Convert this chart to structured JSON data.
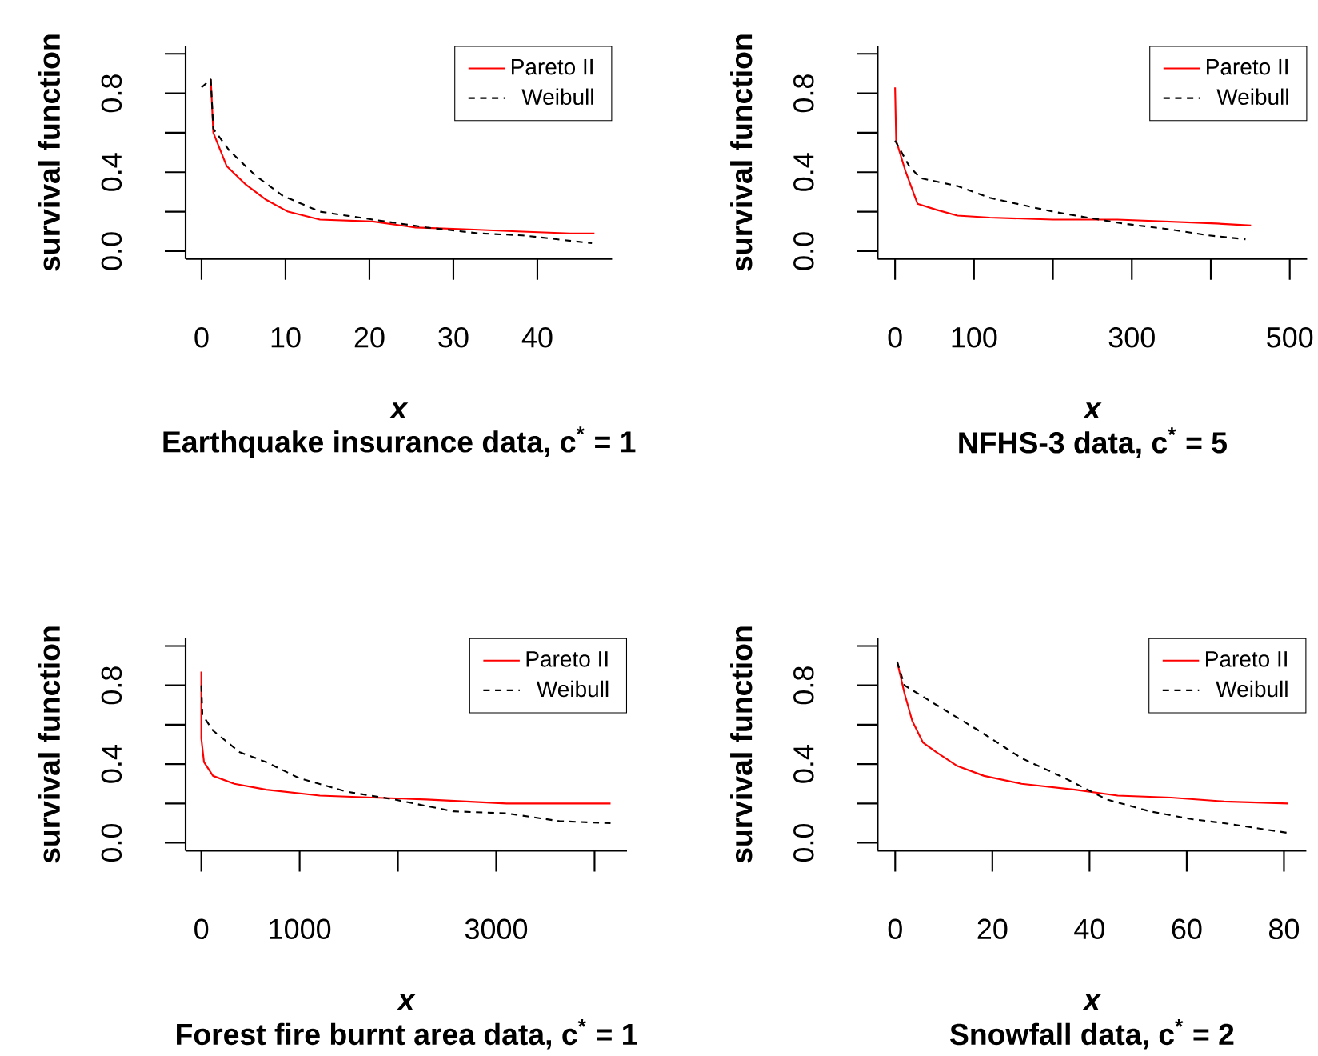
{
  "chart_data": [
    {
      "type": "line",
      "xlabel": "x",
      "ylabel": "survival function",
      "subtitle": "Earthquake insurance data, c$^{*}$ = 1",
      "legend": "top right",
      "xlim": [
        -1.9,
        48.9
      ],
      "ylim": [
        -0.04,
        1.04
      ],
      "xticks": [
        0,
        10,
        20,
        30,
        40
      ],
      "yticks": [
        {
          "value": 0,
          "label": "0.0"
        },
        {
          "value": 0.2,
          "label": null
        },
        {
          "value": 0.4,
          "label": "0.4"
        },
        {
          "value": 0.6,
          "label": null
        },
        {
          "value": 0.8,
          "label": "0.8"
        },
        {
          "value": 1,
          "label": null
        }
      ],
      "series": [
        {
          "name": "Pareto II",
          "color": "#ff0000",
          "line_style": "solid",
          "x": [
            1.1,
            1.4,
            3.0,
            5.2,
            7.7,
            10.3,
            14.1,
            20.4,
            25.5,
            31.9,
            37.6,
            43.9,
            46.8
          ],
          "values": [
            0.87,
            0.6,
            0.43,
            0.34,
            0.26,
            0.2,
            0.16,
            0.15,
            0.12,
            0.11,
            0.1,
            0.09,
            0.09
          ]
        },
        {
          "name": "Weibull",
          "color": "#000000",
          "line_style": "dashed",
          "x": [
            0,
            1.1,
            1.4,
            3.3,
            6.5,
            9.7,
            14.1,
            20.4,
            26.8,
            33.1,
            38.2,
            46.5
          ],
          "values": [
            0.83,
            0.87,
            0.62,
            0.51,
            0.38,
            0.28,
            0.2,
            0.16,
            0.12,
            0.09,
            0.08,
            0.04
          ]
        }
      ]
    },
    {
      "type": "line",
      "xlabel": "x",
      "ylabel": "survival function",
      "subtitle": "NFHS-3 data, c$^{*}$ = 5",
      "legend": "top right",
      "xlim": [
        -22,
        522
      ],
      "ylim": [
        -0.04,
        1.04
      ],
      "xticks": [
        0,
        100,
        {
          "value": 200,
          "label": null
        },
        300,
        {
          "value": 400,
          "label": null
        },
        500
      ],
      "yticks": [
        {
          "value": 0,
          "label": "0.0"
        },
        {
          "value": 0.2,
          "label": null
        },
        {
          "value": 0.4,
          "label": "0.4"
        },
        {
          "value": 0.6,
          "label": null
        },
        {
          "value": 0.8,
          "label": "0.8"
        },
        {
          "value": 1,
          "label": null
        }
      ],
      "series": [
        {
          "name": "Pareto II",
          "color": "#ff0000",
          "line_style": "solid",
          "x": [
            0,
            1.4,
            12.8,
            28.4,
            52,
            79,
            120,
            200,
            282,
            407,
            451
          ],
          "values": [
            0.83,
            0.56,
            0.41,
            0.24,
            0.21,
            0.18,
            0.17,
            0.16,
            0.16,
            0.14,
            0.13
          ]
        },
        {
          "name": "Weibull",
          "color": "#000000",
          "line_style": "dashed",
          "x": [
            0,
            18,
            32,
            79,
            120,
            200,
            288,
            349,
            397,
            444
          ],
          "values": [
            0.56,
            0.43,
            0.37,
            0.33,
            0.27,
            0.2,
            0.14,
            0.11,
            0.08,
            0.06
          ]
        }
      ]
    },
    {
      "type": "line",
      "xlabel": "x",
      "ylabel": "survival function",
      "subtitle": "Forest fire burnt area data, c$^{*}$ = 1",
      "legend": "top right",
      "xlim": [
        -160,
        4330
      ],
      "ylim": [
        -0.04,
        1.04
      ],
      "xticks": [
        0,
        1000,
        {
          "value": 2000,
          "label": null
        },
        3000,
        {
          "value": 4000,
          "label": null
        }
      ],
      "yticks": [
        {
          "value": 0,
          "label": "0.0"
        },
        {
          "value": 0.2,
          "label": null
        },
        {
          "value": 0.4,
          "label": "0.4"
        },
        {
          "value": 0.6,
          "label": null
        },
        {
          "value": 0.8,
          "label": "0.8"
        },
        {
          "value": 1,
          "label": null
        }
      ],
      "series": [
        {
          "name": "Pareto II",
          "color": "#ff0000",
          "line_style": "solid",
          "x": [
            0,
            0,
            27,
            119,
            336,
            662,
            1205,
            1748,
            2290,
            3104,
            4163
          ],
          "values": [
            0.87,
            0.53,
            0.41,
            0.34,
            0.3,
            0.27,
            0.24,
            0.23,
            0.22,
            0.2,
            0.2
          ]
        },
        {
          "name": "Weibull",
          "color": "#000000",
          "line_style": "dashed",
          "x": [
            0,
            11,
            119,
            391,
            662,
            988,
            1476,
            1965,
            2562,
            3104,
            3647,
            4163
          ],
          "values": [
            0.8,
            0.65,
            0.57,
            0.46,
            0.41,
            0.33,
            0.26,
            0.22,
            0.16,
            0.15,
            0.11,
            0.1
          ]
        }
      ]
    },
    {
      "type": "line",
      "xlabel": "x",
      "ylabel": "survival function",
      "subtitle": "Snowfall data, c$^{*}$ = 2",
      "legend": "top right",
      "xlim": [
        -3.6,
        84.6
      ],
      "ylim": [
        -0.04,
        1.04
      ],
      "xticks": [
        0,
        20,
        40,
        60,
        80
      ],
      "yticks": [
        {
          "value": 0,
          "label": "0.0"
        },
        {
          "value": 0.2,
          "label": null
        },
        {
          "value": 0.4,
          "label": "0.4"
        },
        {
          "value": 0.6,
          "label": null
        },
        {
          "value": 0.8,
          "label": "0.8"
        },
        {
          "value": 1,
          "label": null
        }
      ],
      "series": [
        {
          "name": "Pareto II",
          "color": "#ff0000",
          "line_style": "solid",
          "x": [
            0.4,
            1.9,
            3.5,
            5.7,
            8.5,
            12.8,
            18.3,
            26,
            37,
            45.8,
            56.8,
            67.7,
            80.9
          ],
          "values": [
            0.92,
            0.76,
            0.62,
            0.51,
            0.46,
            0.39,
            0.34,
            0.3,
            0.27,
            0.24,
            0.23,
            0.21,
            0.2
          ]
        },
        {
          "name": "Weibull",
          "color": "#000000",
          "line_style": "dashed",
          "x": [
            0.4,
            1.9,
            8.5,
            17.2,
            26,
            34.8,
            43.6,
            52.4,
            61.1,
            67.7,
            80.9
          ],
          "values": [
            0.92,
            0.8,
            0.7,
            0.57,
            0.43,
            0.33,
            0.22,
            0.16,
            0.12,
            0.1,
            0.05
          ]
        }
      ]
    }
  ]
}
